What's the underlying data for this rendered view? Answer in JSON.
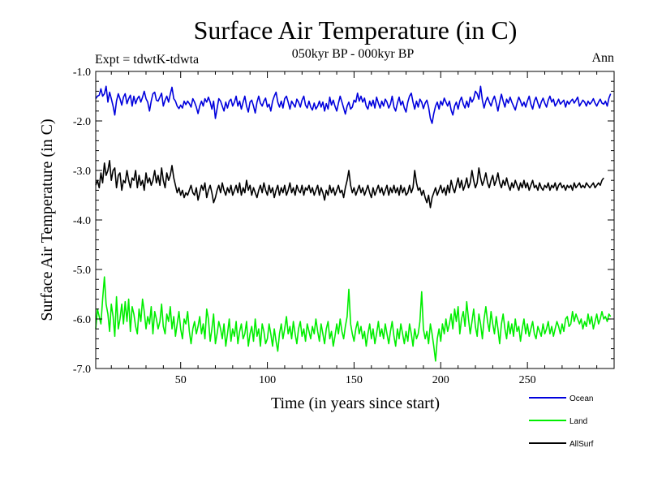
{
  "chart_data": {
    "type": "line",
    "title": "Surface Air Temperature (in C)",
    "subtitle": "050kyr BP - 000kyr BP",
    "experiment": "Expt = tdwtK-tdwta",
    "season": "Ann",
    "xlabel": "Time (in years since start)",
    "ylabel": "Surface Air Temperature (in C)",
    "xlim": [
      1,
      300
    ],
    "ylim": [
      -7.0,
      -1.0
    ],
    "x_ticks": [
      50,
      100,
      150,
      200,
      250
    ],
    "x_tick_labels": [
      "50",
      "100",
      "150",
      "200",
      "250"
    ],
    "y_ticks": [
      -1.0,
      -2.0,
      -3.0,
      -4.0,
      -5.0,
      -6.0,
      -7.0
    ],
    "y_tick_labels": [
      "-1.0",
      "-2.0",
      "-3.0",
      "-4.0",
      "-5.0",
      "-6.0",
      "-7.0"
    ],
    "x_step": 1,
    "legend_position": "bottom-right",
    "series": [
      {
        "name": "Ocean",
        "color": "#0000dd",
        "values": [
          -1.55,
          -1.5,
          -1.48,
          -1.35,
          -1.5,
          -1.45,
          -1.3,
          -1.62,
          -1.42,
          -1.55,
          -1.7,
          -1.88,
          -1.6,
          -1.45,
          -1.55,
          -1.68,
          -1.52,
          -1.45,
          -1.65,
          -1.55,
          -1.48,
          -1.7,
          -1.5,
          -1.65,
          -1.55,
          -1.5,
          -1.62,
          -1.52,
          -1.4,
          -1.55,
          -1.62,
          -1.8,
          -1.6,
          -1.45,
          -1.42,
          -1.58,
          -1.6,
          -1.52,
          -1.44,
          -1.7,
          -1.58,
          -1.5,
          -1.62,
          -1.46,
          -1.32,
          -1.55,
          -1.6,
          -1.7,
          -1.75,
          -1.68,
          -1.74,
          -1.6,
          -1.67,
          -1.6,
          -1.65,
          -1.72,
          -1.55,
          -1.62,
          -1.72,
          -1.85,
          -1.7,
          -1.6,
          -1.7,
          -1.55,
          -1.62,
          -1.52,
          -1.62,
          -1.76,
          -1.6,
          -1.95,
          -1.75,
          -1.55,
          -1.6,
          -1.7,
          -1.8,
          -1.62,
          -1.74,
          -1.6,
          -1.56,
          -1.7,
          -1.62,
          -1.5,
          -1.7,
          -1.6,
          -1.76,
          -1.62,
          -1.5,
          -1.7,
          -1.82,
          -1.62,
          -1.58,
          -1.7,
          -1.84,
          -1.62,
          -1.5,
          -1.64,
          -1.7,
          -1.6,
          -1.54,
          -1.72,
          -1.66,
          -1.8,
          -1.6,
          -1.5,
          -1.42,
          -1.62,
          -1.72,
          -1.6,
          -1.74,
          -1.55,
          -1.5,
          -1.62,
          -1.76,
          -1.6,
          -1.66,
          -1.72,
          -1.56,
          -1.62,
          -1.72,
          -1.58,
          -1.5,
          -1.68,
          -1.74,
          -1.6,
          -1.72,
          -1.78,
          -1.64,
          -1.76,
          -1.7,
          -1.6,
          -1.72,
          -1.62,
          -1.8,
          -1.65,
          -1.76,
          -1.52,
          -1.68,
          -1.58,
          -1.7,
          -1.8,
          -1.64,
          -1.5,
          -1.62,
          -1.74,
          -1.86,
          -1.7,
          -1.62,
          -1.76,
          -1.72,
          -1.58,
          -1.62,
          -1.44,
          -1.6,
          -1.5,
          -1.62,
          -1.54,
          -1.7,
          -1.76,
          -1.6,
          -1.7,
          -1.58,
          -1.74,
          -1.52,
          -1.64,
          -1.74,
          -1.6,
          -1.7,
          -1.56,
          -1.62,
          -1.74,
          -1.66,
          -1.5,
          -1.72,
          -1.8,
          -1.64,
          -1.52,
          -1.68,
          -1.6,
          -1.74,
          -1.82,
          -1.62,
          -1.5,
          -1.44,
          -1.62,
          -1.76,
          -1.6,
          -1.72,
          -1.56,
          -1.62,
          -1.75,
          -1.64,
          -1.58,
          -1.72,
          -1.95,
          -2.05,
          -1.85,
          -1.7,
          -1.62,
          -1.76,
          -1.6,
          -1.68,
          -1.54,
          -1.62,
          -1.7,
          -1.6,
          -1.78,
          -1.88,
          -1.7,
          -1.62,
          -1.76,
          -1.6,
          -1.52,
          -1.66,
          -1.74,
          -1.6,
          -1.72,
          -1.52,
          -1.62,
          -1.55,
          -1.4,
          -1.45,
          -1.56,
          -1.3,
          -1.58,
          -1.74,
          -1.6,
          -1.52,
          -1.62,
          -1.7,
          -1.58,
          -1.5,
          -1.64,
          -1.8,
          -1.62,
          -1.46,
          -1.6,
          -1.72,
          -1.56,
          -1.64,
          -1.52,
          -1.62,
          -1.7,
          -1.78,
          -1.64,
          -1.52,
          -1.6,
          -1.7,
          -1.62,
          -1.72,
          -1.6,
          -1.5,
          -1.66,
          -1.76,
          -1.6,
          -1.52,
          -1.64,
          -1.74,
          -1.62,
          -1.54,
          -1.64,
          -1.72,
          -1.58,
          -1.5,
          -1.62,
          -1.56,
          -1.7,
          -1.64,
          -1.56,
          -1.66,
          -1.62,
          -1.58,
          -1.72,
          -1.6,
          -1.66,
          -1.6,
          -1.56,
          -1.64,
          -1.58,
          -1.52,
          -1.7,
          -1.64,
          -1.58,
          -1.62,
          -1.7,
          -1.6,
          -1.66,
          -1.62,
          -1.55,
          -1.64,
          -1.7,
          -1.62,
          -1.56,
          -1.64,
          -1.66,
          -1.6,
          -1.7,
          -1.54,
          -1.45
        ]
      },
      {
        "name": "Land",
        "color": "#00ee00",
        "values": [
          -6.2,
          -5.8,
          -5.95,
          -6.1,
          -5.6,
          -5.15,
          -5.7,
          -5.9,
          -6.25,
          -5.7,
          -5.95,
          -6.35,
          -5.55,
          -6.2,
          -6.0,
          -5.7,
          -6.1,
          -5.65,
          -6.05,
          -5.6,
          -6.25,
          -5.75,
          -5.9,
          -6.15,
          -6.3,
          -5.8,
          -6.05,
          -5.6,
          -5.85,
          -6.2,
          -5.95,
          -6.1,
          -5.75,
          -6.3,
          -5.85,
          -6.0,
          -6.2,
          -6.05,
          -5.7,
          -6.15,
          -6.3,
          -5.9,
          -6.05,
          -5.75,
          -6.2,
          -5.95,
          -6.35,
          -6.1,
          -5.85,
          -6.2,
          -6.4,
          -6.0,
          -6.1,
          -5.85,
          -6.25,
          -6.5,
          -6.2,
          -6.05,
          -6.3,
          -6.15,
          -5.95,
          -6.3,
          -6.1,
          -6.4,
          -5.8,
          -6.0,
          -6.45,
          -6.2,
          -5.9,
          -6.5,
          -6.3,
          -6.05,
          -6.2,
          -6.4,
          -6.1,
          -6.55,
          -6.3,
          -6.0,
          -6.45,
          -6.2,
          -6.35,
          -6.05,
          -6.5,
          -6.25,
          -6.1,
          -6.4,
          -6.3,
          -6.05,
          -6.55,
          -6.3,
          -6.15,
          -6.45,
          -6.0,
          -6.35,
          -6.2,
          -6.55,
          -6.1,
          -6.25,
          -6.5,
          -6.4,
          -6.1,
          -6.3,
          -6.55,
          -6.2,
          -6.45,
          -6.65,
          -6.3,
          -6.1,
          -6.4,
          -6.2,
          -5.95,
          -6.3,
          -6.15,
          -6.4,
          -6.05,
          -6.3,
          -6.5,
          -6.2,
          -6.05,
          -6.35,
          -6.2,
          -6.45,
          -6.1,
          -6.25,
          -6.4,
          -6.15,
          -6.3,
          -6.0,
          -6.25,
          -6.45,
          -6.1,
          -6.3,
          -6.5,
          -6.2,
          -6.05,
          -6.4,
          -6.25,
          -6.55,
          -6.35,
          -6.1,
          -6.3,
          -6.0,
          -6.25,
          -6.4,
          -6.15,
          -5.95,
          -5.4,
          -6.1,
          -6.3,
          -6.45,
          -6.2,
          -6.05,
          -6.3,
          -6.15,
          -6.4,
          -6.25,
          -6.55,
          -6.3,
          -6.1,
          -6.4,
          -6.2,
          -6.5,
          -6.3,
          -6.05,
          -6.35,
          -6.2,
          -6.4,
          -6.1,
          -6.3,
          -6.5,
          -6.25,
          -6.05,
          -6.35,
          -6.55,
          -6.2,
          -6.4,
          -6.1,
          -6.3,
          -6.5,
          -6.25,
          -6.45,
          -6.1,
          -6.3,
          -6.55,
          -6.2,
          -6.4,
          -6.3,
          -6.05,
          -5.45,
          -6.2,
          -6.4,
          -6.25,
          -6.5,
          -6.1,
          -6.3,
          -6.55,
          -6.85,
          -6.4,
          -6.2,
          -6.45,
          -6.1,
          -6.3,
          -6.0,
          -6.25,
          -6.1,
          -5.9,
          -6.2,
          -5.8,
          -6.05,
          -5.75,
          -6.3,
          -6.0,
          -5.85,
          -6.15,
          -5.65,
          -6.0,
          -6.3,
          -6.05,
          -5.8,
          -6.15,
          -6.35,
          -5.9,
          -6.1,
          -6.4,
          -6.0,
          -5.75,
          -6.05,
          -6.25,
          -5.85,
          -6.1,
          -6.3,
          -5.95,
          -6.2,
          -6.5,
          -6.1,
          -5.9,
          -6.2,
          -6.4,
          -6.05,
          -6.3,
          -6.1,
          -6.35,
          -6.0,
          -6.25,
          -6.15,
          -6.45,
          -6.2,
          -6.0,
          -6.3,
          -6.1,
          -6.35,
          -6.2,
          -6.05,
          -6.3,
          -6.4,
          -6.15,
          -6.25,
          -6.35,
          -6.1,
          -6.3,
          -6.2,
          -6.05,
          -6.3,
          -6.15,
          -6.35,
          -6.2,
          -6.05,
          -6.15,
          -6.3,
          -6.1,
          -6.25,
          -6.0,
          -5.95,
          -6.15,
          -6.1,
          -5.85,
          -6.05,
          -5.9,
          -6.0,
          -6.1,
          -6.0,
          -6.2,
          -6.05,
          -6.15,
          -5.9,
          -6.1,
          -5.95,
          -6.2,
          -6.05,
          -5.9,
          -6.1,
          -6.0,
          -5.85,
          -6.0,
          -5.95,
          -6.05,
          -5.9,
          -5.95
        ]
      },
      {
        "name": "AllSurf",
        "color": "#000000",
        "values": [
          -3.3,
          -3.2,
          -3.35,
          -3.05,
          -3.25,
          -2.85,
          -3.1,
          -3.0,
          -2.8,
          -3.2,
          -3.0,
          -2.95,
          -3.35,
          -3.1,
          -3.05,
          -3.4,
          -3.2,
          -3.25,
          -3.0,
          -3.2,
          -3.35,
          -3.15,
          -3.2,
          -3.0,
          -3.35,
          -3.1,
          -3.3,
          -3.2,
          -3.4,
          -3.05,
          -3.25,
          -3.15,
          -3.3,
          -3.2,
          -3.0,
          -3.25,
          -3.1,
          -3.3,
          -2.95,
          -3.2,
          -3.35,
          -3.05,
          -3.2,
          -3.1,
          -2.9,
          -3.15,
          -3.3,
          -3.45,
          -3.35,
          -3.5,
          -3.4,
          -3.55,
          -3.45,
          -3.5,
          -3.4,
          -3.3,
          -3.45,
          -3.5,
          -3.35,
          -3.6,
          -3.45,
          -3.3,
          -3.4,
          -3.25,
          -3.55,
          -3.4,
          -3.3,
          -3.45,
          -3.65,
          -3.55,
          -3.4,
          -3.3,
          -3.45,
          -3.25,
          -3.4,
          -3.5,
          -3.35,
          -3.45,
          -3.3,
          -3.5,
          -3.4,
          -3.3,
          -3.45,
          -3.25,
          -3.5,
          -3.35,
          -3.45,
          -3.2,
          -3.4,
          -3.3,
          -3.5,
          -3.35,
          -3.45,
          -3.55,
          -3.4,
          -3.3,
          -3.45,
          -3.25,
          -3.4,
          -3.5,
          -3.3,
          -3.45,
          -3.35,
          -3.55,
          -3.4,
          -3.3,
          -3.5,
          -3.35,
          -3.45,
          -3.3,
          -3.5,
          -3.4,
          -3.25,
          -3.45,
          -3.35,
          -3.5,
          -3.3,
          -3.4,
          -3.45,
          -3.3,
          -3.5,
          -3.35,
          -3.4,
          -3.3,
          -3.45,
          -3.35,
          -3.5,
          -3.4,
          -3.3,
          -3.5,
          -3.35,
          -3.45,
          -3.6,
          -3.4,
          -3.5,
          -3.3,
          -3.45,
          -3.35,
          -3.5,
          -3.4,
          -3.3,
          -3.45,
          -3.4,
          -3.55,
          -3.35,
          -3.2,
          -3.0,
          -3.3,
          -3.45,
          -3.35,
          -3.5,
          -3.4,
          -3.3,
          -3.45,
          -3.35,
          -3.5,
          -3.4,
          -3.3,
          -3.45,
          -3.55,
          -3.35,
          -3.5,
          -3.4,
          -3.3,
          -3.45,
          -3.35,
          -3.5,
          -3.4,
          -3.3,
          -3.5,
          -3.35,
          -3.45,
          -3.3,
          -3.45,
          -3.35,
          -3.5,
          -3.3,
          -3.45,
          -3.35,
          -3.5,
          -3.45,
          -3.3,
          -3.45,
          -3.35,
          -3.0,
          -3.25,
          -3.4,
          -3.35,
          -3.5,
          -3.4,
          -3.55,
          -3.65,
          -3.5,
          -3.75,
          -3.55,
          -3.45,
          -3.35,
          -3.5,
          -3.4,
          -3.3,
          -3.45,
          -3.35,
          -3.5,
          -3.3,
          -3.45,
          -3.2,
          -3.35,
          -3.45,
          -3.3,
          -3.15,
          -3.35,
          -3.2,
          -3.4,
          -3.3,
          -3.15,
          -3.35,
          -3.25,
          -3.0,
          -3.2,
          -3.35,
          -3.25,
          -2.95,
          -3.15,
          -3.3,
          -3.2,
          -3.05,
          -3.25,
          -3.35,
          -3.2,
          -3.1,
          -3.3,
          -3.2,
          -3.05,
          -3.25,
          -3.35,
          -3.2,
          -3.3,
          -3.15,
          -3.3,
          -3.4,
          -3.25,
          -3.35,
          -3.2,
          -3.3,
          -3.4,
          -3.25,
          -3.35,
          -3.2,
          -3.35,
          -3.25,
          -3.4,
          -3.3,
          -3.2,
          -3.35,
          -3.3,
          -3.4,
          -3.25,
          -3.35,
          -3.4,
          -3.3,
          -3.35,
          -3.25,
          -3.4,
          -3.3,
          -3.35,
          -3.25,
          -3.4,
          -3.3,
          -3.25,
          -3.35,
          -3.3,
          -3.4,
          -3.3,
          -3.35,
          -3.3,
          -3.4,
          -3.25,
          -3.35,
          -3.3,
          -3.25,
          -3.35,
          -3.3,
          -3.35,
          -3.25,
          -3.3,
          -3.35,
          -3.3,
          -3.25,
          -3.35,
          -3.3,
          -3.25,
          -3.3,
          -3.2,
          -3.15
        ]
      }
    ]
  }
}
